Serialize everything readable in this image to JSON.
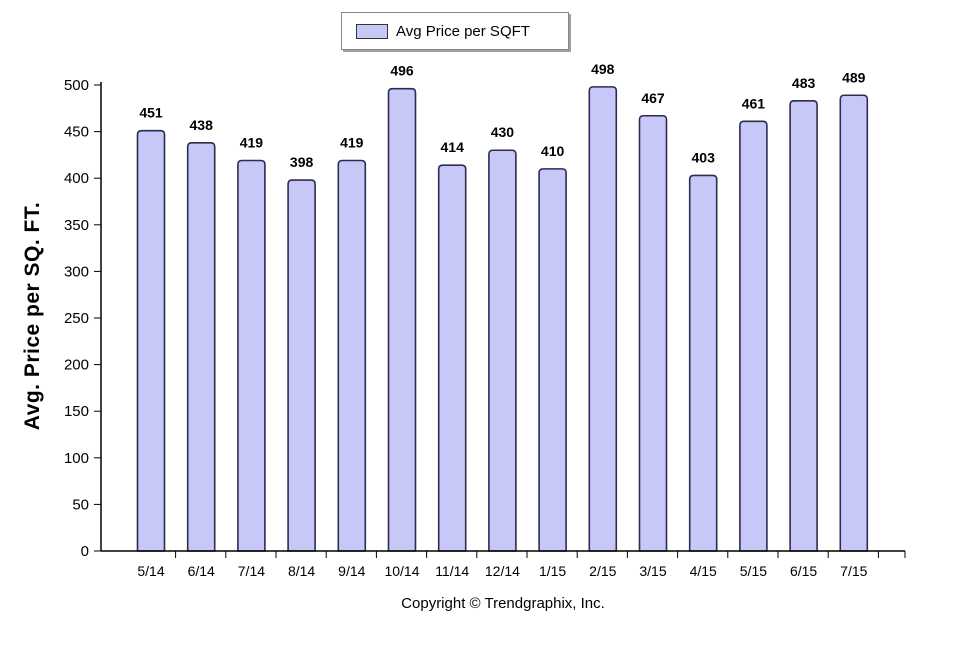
{
  "legend": {
    "label": "Avg Price per SQFT",
    "swatch_color": "#c8c8f8"
  },
  "copyright": "Copyright © Trendgraphix, Inc.",
  "colors": {
    "bar_fill": "#c8c8f8",
    "bar_stroke": "#2c2c50",
    "axis": "#000000"
  },
  "chart_data": {
    "type": "bar",
    "categories": [
      "5/14",
      "6/14",
      "7/14",
      "8/14",
      "9/14",
      "10/14",
      "11/14",
      "12/14",
      "1/15",
      "2/15",
      "3/15",
      "4/15",
      "5/15",
      "6/15",
      "7/15"
    ],
    "series": [
      {
        "name": "Avg Price per SQFT",
        "values": [
          451,
          438,
          419,
          398,
          419,
          496,
          414,
          430,
          410,
          498,
          467,
          403,
          461,
          483,
          489
        ]
      }
    ],
    "title": "",
    "xlabel": "",
    "ylabel": "Avg. Price per SQ. FT.",
    "ylim": [
      0,
      500
    ],
    "yticks": [
      0,
      50,
      100,
      150,
      200,
      250,
      300,
      350,
      400,
      450,
      500
    ],
    "data_labels": true,
    "grid": false,
    "legend_position": "top-center"
  }
}
